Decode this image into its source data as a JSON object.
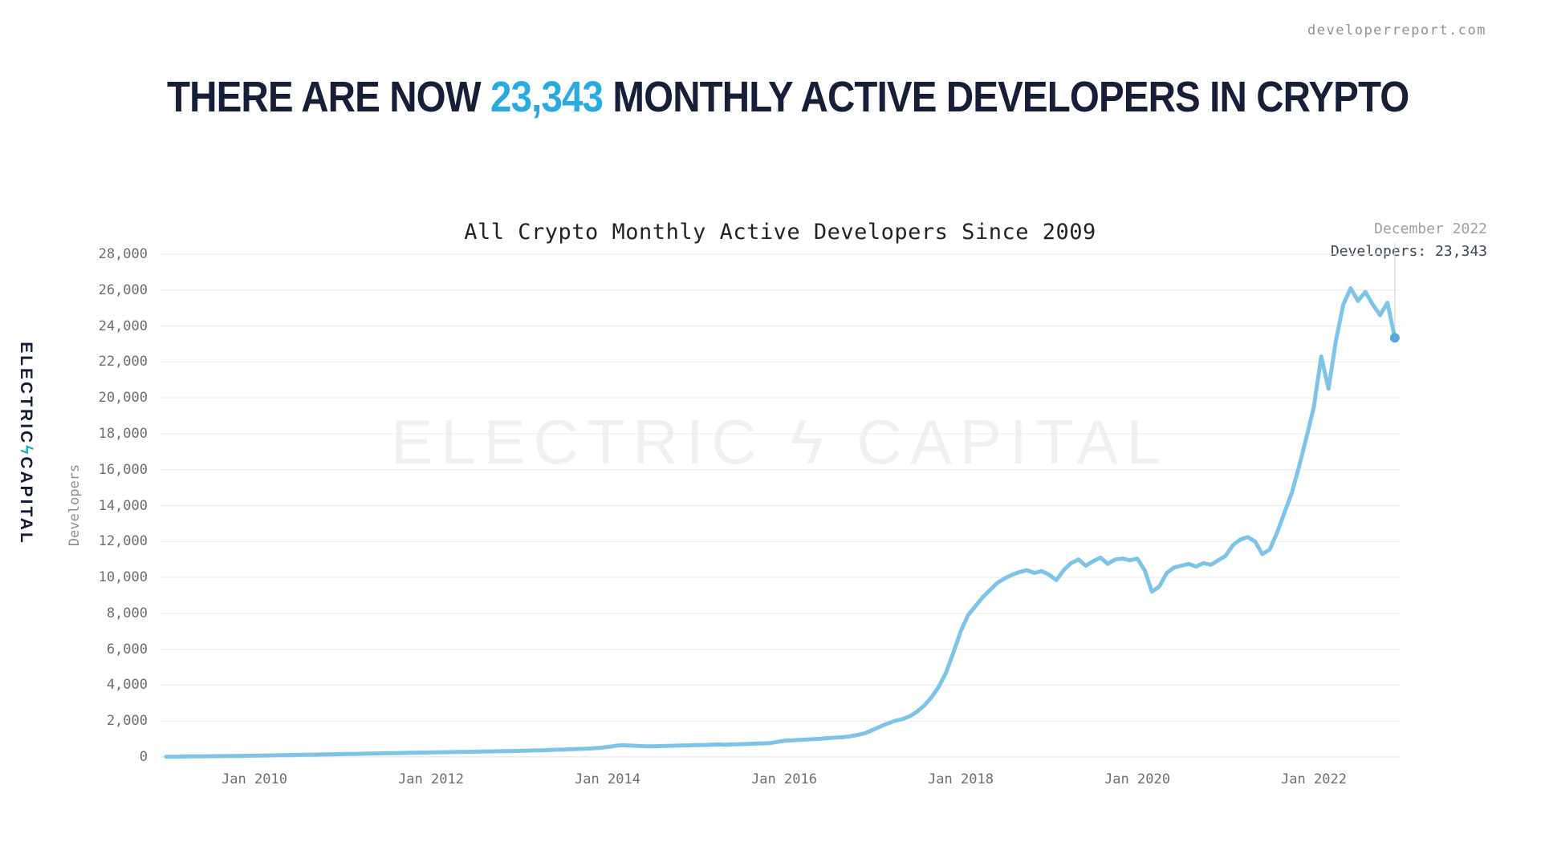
{
  "page": {
    "site": "developerreport.com"
  },
  "headline": {
    "prefix": "THERE ARE NOW ",
    "highlight": "23,343",
    "suffix": " MONTHLY ACTIVE DEVELOPERS IN CRYPTO",
    "highlight_color": "#29ABE2"
  },
  "logo": {
    "left": "ELECTRIC",
    "bolt": "ϟ",
    "right": "CAPITAL"
  },
  "watermark": {
    "text": "ELECTRIC ϟ CAPITAL"
  },
  "annotation": {
    "line1": "December 2022",
    "line2": "Developers: 23,343"
  },
  "chart_data": {
    "type": "line",
    "title": "All Crypto Monthly Active Developers Since 2009",
    "ylabel": "Developers",
    "ylim": [
      0,
      28000
    ],
    "grid": "horizontal",
    "line_color": "#7EC3E8",
    "dot_color": "#57A9DC",
    "y_ticks": [
      0,
      2000,
      4000,
      6000,
      8000,
      10000,
      12000,
      14000,
      16000,
      18000,
      20000,
      22000,
      24000,
      26000,
      28000
    ],
    "x_ticks": [
      {
        "label": "Jan 2010",
        "month_index": 12
      },
      {
        "label": "Jan 2012",
        "month_index": 36
      },
      {
        "label": "Jan 2014",
        "month_index": 60
      },
      {
        "label": "Jan 2016",
        "month_index": 84
      },
      {
        "label": "Jan 2018",
        "month_index": 108
      },
      {
        "label": "Jan 2020",
        "month_index": 132
      },
      {
        "label": "Jan 2022",
        "month_index": 156
      }
    ],
    "x_start": "Jan 2009",
    "x_end": "Dec 2022",
    "series": [
      {
        "name": "Monthly active developers",
        "start_month": "2009-01",
        "values": [
          10,
          15,
          20,
          25,
          30,
          35,
          40,
          45,
          50,
          55,
          60,
          65,
          70,
          78,
          85,
          92,
          100,
          108,
          115,
          122,
          130,
          138,
          145,
          152,
          160,
          168,
          175,
          182,
          190,
          198,
          205,
          212,
          220,
          228,
          235,
          242,
          250,
          258,
          265,
          272,
          280,
          288,
          295,
          302,
          310,
          318,
          325,
          332,
          340,
          350,
          360,
          370,
          385,
          400,
          415,
          430,
          445,
          460,
          480,
          510,
          560,
          610,
          650,
          640,
          615,
          600,
          595,
          605,
          615,
          625,
          635,
          645,
          655,
          665,
          680,
          695,
          685,
          695,
          710,
          725,
          740,
          755,
          770,
          830,
          900,
          920,
          945,
          965,
          990,
          1020,
          1050,
          1075,
          1100,
          1150,
          1230,
          1320,
          1500,
          1680,
          1850,
          2000,
          2100,
          2250,
          2500,
          2850,
          3300,
          3900,
          4700,
          5800,
          7000,
          7900,
          8400,
          8900,
          9300,
          9700,
          9950,
          10150,
          10300,
          10400,
          10250,
          10350,
          10150,
          9850,
          10400,
          10800,
          11000,
          10650,
          10900,
          11100,
          10750,
          11000,
          11050,
          10950,
          11050,
          10400,
          9200,
          9500,
          10250,
          10550,
          10650,
          10750,
          10600,
          10800,
          10700,
          10950,
          11200,
          11800,
          12100,
          12250,
          12000,
          11300,
          11550,
          12500,
          13600,
          14700,
          16200,
          17800,
          19500,
          22300,
          20500,
          23200,
          25200,
          26100,
          25400,
          25900,
          25200,
          24600,
          25300,
          23343
        ]
      }
    ],
    "final_point": {
      "date": "December 2022",
      "value": 23343
    }
  }
}
